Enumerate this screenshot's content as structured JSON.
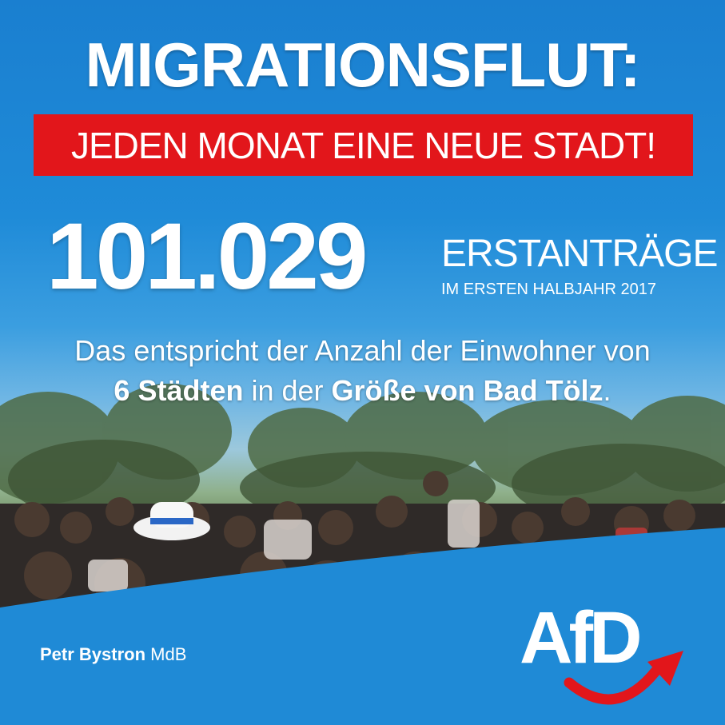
{
  "headline": "MIGRATIONSFLUT:",
  "banner": "JEDEN MONAT EINE NEUE STADT!",
  "number": {
    "value": "101.029",
    "label": "ERSTANTRÄGE",
    "sublabel": "IM ERSTEN HALBJAHR 2017"
  },
  "description": {
    "line1": "Das entspricht der Anzahl der Einwohner von",
    "bold1": "6 Städten",
    "mid": " in der ",
    "bold2": "Größe von Bad Tölz",
    "end": "."
  },
  "author": {
    "name": "Petr Bystron",
    "title": " MdB"
  },
  "logo": {
    "text": "AfD"
  },
  "colors": {
    "blue": "#1f8ad6",
    "red": "#e2161b",
    "white": "#ffffff"
  }
}
